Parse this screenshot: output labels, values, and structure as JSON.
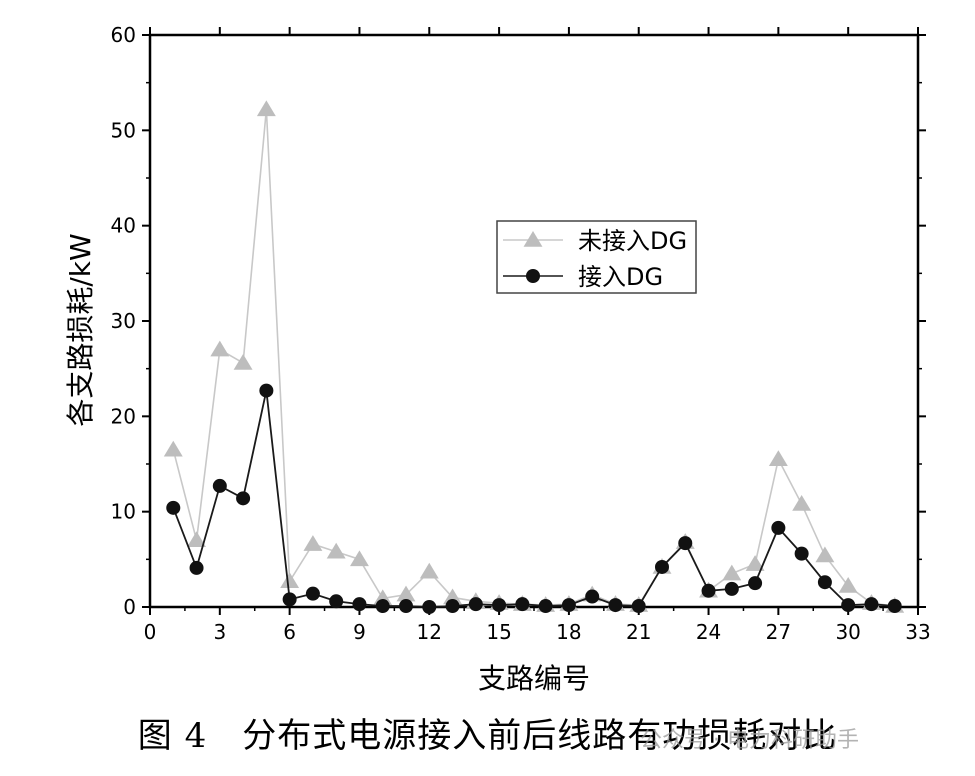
{
  "chart_data": {
    "type": "line",
    "title": "",
    "xlabel": "支路编号",
    "ylabel": "各支路损耗/kW",
    "xlim": [
      0,
      33
    ],
    "ylim": [
      0,
      60
    ],
    "xticks": [
      0,
      3,
      6,
      9,
      12,
      15,
      18,
      21,
      24,
      27,
      30,
      33
    ],
    "yticks": [
      0,
      10,
      20,
      30,
      40,
      50,
      60
    ],
    "grid": false,
    "legend_position": "upper center",
    "x": [
      1,
      2,
      3,
      4,
      5,
      6,
      7,
      8,
      9,
      10,
      11,
      12,
      13,
      14,
      15,
      16,
      17,
      18,
      19,
      20,
      21,
      22,
      23,
      24,
      25,
      26,
      27,
      28,
      29,
      30,
      31,
      32
    ],
    "series": [
      {
        "name": "未接入DG",
        "marker": "triangle",
        "color": "#bdbdbd",
        "values": [
          16.5,
          7.0,
          27.0,
          25.6,
          52.2,
          2.7,
          6.6,
          5.8,
          5.0,
          0.9,
          1.3,
          3.7,
          1.0,
          0.6,
          0.4,
          0.3,
          0.2,
          0.3,
          1.3,
          0.3,
          0.2,
          4.2,
          6.8,
          1.7,
          3.5,
          4.5,
          15.5,
          10.8,
          5.4,
          2.2,
          0.4,
          0.1
        ]
      },
      {
        "name": "接入DG",
        "marker": "circle",
        "color": "#111111",
        "values": [
          10.4,
          4.1,
          12.7,
          11.4,
          22.7,
          0.8,
          1.4,
          0.6,
          0.3,
          0.1,
          0.1,
          0.0,
          0.1,
          0.3,
          0.2,
          0.3,
          0.1,
          0.2,
          1.1,
          0.2,
          0.1,
          4.2,
          6.7,
          1.7,
          1.9,
          2.5,
          8.3,
          5.6,
          2.6,
          0.2,
          0.3,
          0.1
        ]
      }
    ]
  },
  "caption": "图 4　分布式电源接入前后线路有功损耗对比",
  "watermark": "公众号 · 电力科研助手"
}
